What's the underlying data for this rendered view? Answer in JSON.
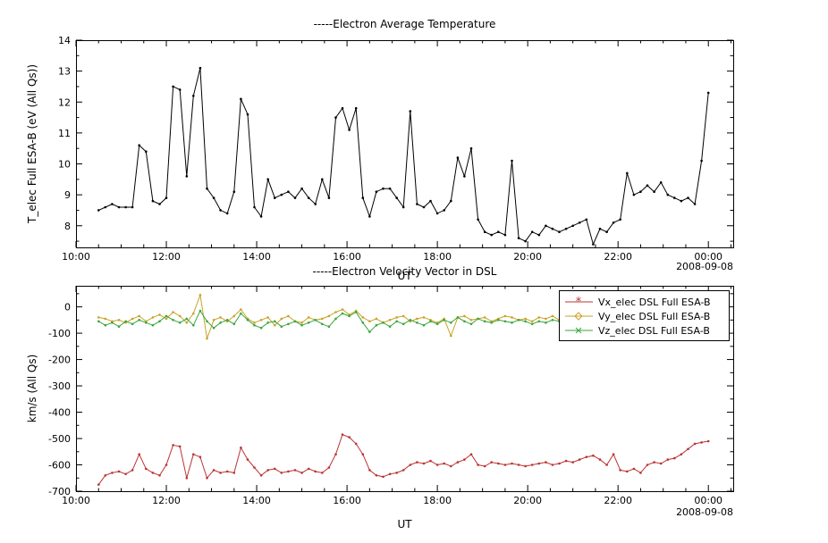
{
  "page": {
    "background": "#ffffff"
  },
  "chart_data": [
    {
      "type": "line",
      "title": "-----Electron Average Temperature",
      "xlabel": "UT",
      "ylabel": "T_elec Full ESA-B (eV (All Qs))",
      "date_label": "2008-09-08",
      "xlim": [
        10,
        24.55
      ],
      "ylim": [
        7.3,
        14
      ],
      "x_ticks": [
        10,
        12,
        14,
        16,
        18,
        20,
        22,
        24
      ],
      "x_tick_labels": [
        "10:00",
        "12:00",
        "14:00",
        "16:00",
        "18:00",
        "20:00",
        "22:00",
        "00:00"
      ],
      "x_minor": 0.5,
      "y_ticks": [
        8,
        9,
        10,
        11,
        12,
        13,
        14
      ],
      "y_tick_labels": [
        "8",
        "9",
        "10",
        "11",
        "12",
        "13",
        "14"
      ],
      "y_minor": 0.5,
      "x": [
        10.5,
        10.65,
        10.8,
        10.95,
        11.1,
        11.25,
        11.4,
        11.55,
        11.7,
        11.85,
        12.0,
        12.15,
        12.3,
        12.45,
        12.6,
        12.75,
        12.9,
        13.05,
        13.2,
        13.35,
        13.5,
        13.65,
        13.8,
        13.95,
        14.1,
        14.25,
        14.4,
        14.55,
        14.7,
        14.85,
        15.0,
        15.15,
        15.3,
        15.45,
        15.6,
        15.75,
        15.9,
        16.05,
        16.2,
        16.35,
        16.5,
        16.65,
        16.8,
        16.95,
        17.1,
        17.25,
        17.4,
        17.55,
        17.7,
        17.85,
        18.0,
        18.15,
        18.3,
        18.45,
        18.6,
        18.75,
        18.9,
        19.05,
        19.2,
        19.35,
        19.5,
        19.65,
        19.8,
        19.95,
        20.1,
        20.25,
        20.4,
        20.55,
        20.7,
        20.85,
        21.0,
        21.15,
        21.3,
        21.45,
        21.6,
        21.75,
        21.9,
        22.05,
        22.2,
        22.35,
        22.5,
        22.65,
        22.8,
        22.95,
        23.1,
        23.25,
        23.4,
        23.55,
        23.7,
        23.85,
        24.0
      ],
      "series": [
        {
          "name": "T_elec Full ESA-B",
          "color": "#000000",
          "marker": "dot",
          "values": [
            8.5,
            8.6,
            8.7,
            8.6,
            8.6,
            8.6,
            10.6,
            10.4,
            8.8,
            8.7,
            8.9,
            12.5,
            12.4,
            9.6,
            12.2,
            13.1,
            9.2,
            8.9,
            8.5,
            8.4,
            9.1,
            12.1,
            11.6,
            8.6,
            8.3,
            9.5,
            8.9,
            9.0,
            9.1,
            8.9,
            9.2,
            8.9,
            8.7,
            9.5,
            8.9,
            11.5,
            11.8,
            11.1,
            11.8,
            8.9,
            8.3,
            9.1,
            9.2,
            9.2,
            8.9,
            8.6,
            11.7,
            8.7,
            8.6,
            8.8,
            8.4,
            8.5,
            8.8,
            10.2,
            9.6,
            10.5,
            8.2,
            7.8,
            7.7,
            7.8,
            7.7,
            10.1,
            7.6,
            7.5,
            7.8,
            7.7,
            8.0,
            7.9,
            7.8,
            7.9,
            8.0,
            8.1,
            8.2,
            7.4,
            7.9,
            7.8,
            8.1,
            8.2,
            9.7,
            9.0,
            9.1,
            9.3,
            9.1,
            9.4,
            9.0,
            8.9,
            8.8,
            8.9,
            8.7,
            10.1,
            12.3
          ]
        }
      ]
    },
    {
      "type": "line",
      "title": "-----Electron Velocity Vector in DSL",
      "xlabel": "UT",
      "ylabel": "km/s (All Qs)",
      "date_label": "2008-09-08",
      "xlim": [
        10,
        24.55
      ],
      "ylim": [
        -700,
        80
      ],
      "x_ticks": [
        10,
        12,
        14,
        16,
        18,
        20,
        22,
        24
      ],
      "x_tick_labels": [
        "10:00",
        "12:00",
        "14:00",
        "16:00",
        "18:00",
        "20:00",
        "22:00",
        "00:00"
      ],
      "x_minor": 0.5,
      "y_ticks": [
        0,
        -100,
        -200,
        -300,
        -400,
        -500,
        -600,
        -700
      ],
      "y_tick_labels": [
        "0",
        "-100",
        "-200",
        "-300",
        "-400",
        "-500",
        "-600",
        "-700"
      ],
      "y_minor": 50,
      "legend_position": "top-right",
      "x": [
        10.5,
        10.65,
        10.8,
        10.95,
        11.1,
        11.25,
        11.4,
        11.55,
        11.7,
        11.85,
        12.0,
        12.15,
        12.3,
        12.45,
        12.6,
        12.75,
        12.9,
        13.05,
        13.2,
        13.35,
        13.5,
        13.65,
        13.8,
        13.95,
        14.1,
        14.25,
        14.4,
        14.55,
        14.7,
        14.85,
        15.0,
        15.15,
        15.3,
        15.45,
        15.6,
        15.75,
        15.9,
        16.05,
        16.2,
        16.35,
        16.5,
        16.65,
        16.8,
        16.95,
        17.1,
        17.25,
        17.4,
        17.55,
        17.7,
        17.85,
        18.0,
        18.15,
        18.3,
        18.45,
        18.6,
        18.75,
        18.9,
        19.05,
        19.2,
        19.35,
        19.5,
        19.65,
        19.8,
        19.95,
        20.1,
        20.25,
        20.4,
        20.55,
        20.7,
        20.85,
        21.0,
        21.15,
        21.3,
        21.45,
        21.6,
        21.75,
        21.9,
        22.05,
        22.2,
        22.35,
        22.5,
        22.65,
        22.8,
        22.95,
        23.1,
        23.25,
        23.4,
        23.55,
        23.7,
        23.85,
        24.0
      ],
      "series": [
        {
          "name": "Vx_elec DSL Full ESA-B",
          "color": "#bb3333",
          "marker": "asterisk",
          "values": [
            -675,
            -640,
            -630,
            -625,
            -635,
            -620,
            -560,
            -615,
            -630,
            -640,
            -600,
            -525,
            -530,
            -650,
            -560,
            -570,
            -650,
            -620,
            -630,
            -625,
            -630,
            -535,
            -580,
            -610,
            -640,
            -620,
            -615,
            -630,
            -625,
            -620,
            -630,
            -615,
            -625,
            -630,
            -610,
            -560,
            -485,
            -495,
            -520,
            -560,
            -620,
            -640,
            -645,
            -635,
            -630,
            -620,
            -600,
            -590,
            -595,
            -585,
            -600,
            -595,
            -605,
            -590,
            -580,
            -560,
            -600,
            -605,
            -590,
            -595,
            -600,
            -595,
            -600,
            -605,
            -600,
            -595,
            -590,
            -600,
            -595,
            -585,
            -590,
            -580,
            -570,
            -565,
            -580,
            -600,
            -560,
            -620,
            -625,
            -615,
            -630,
            -600,
            -590,
            -595,
            -580,
            -575,
            -560,
            -540,
            -520,
            -515,
            -510
          ]
        },
        {
          "name": "Vy_elec DSL Full ESA-B",
          "color": "#c9a227",
          "marker": "diamond",
          "values": [
            -40,
            -45,
            -55,
            -50,
            -60,
            -45,
            -35,
            -55,
            -40,
            -30,
            -45,
            -20,
            -35,
            -60,
            -25,
            45,
            -120,
            -50,
            -40,
            -55,
            -35,
            -10,
            -45,
            -60,
            -50,
            -40,
            -70,
            -45,
            -35,
            -55,
            -60,
            -40,
            -50,
            -45,
            -35,
            -20,
            -10,
            -30,
            -15,
            -40,
            -55,
            -45,
            -60,
            -50,
            -40,
            -35,
            -55,
            -45,
            -40,
            -50,
            -60,
            -45,
            -110,
            -40,
            -35,
            -50,
            -45,
            -40,
            -55,
            -45,
            -35,
            -40,
            -50,
            -45,
            -55,
            -40,
            -45,
            -35,
            -50,
            -40,
            -55,
            -45,
            -40,
            -35,
            -45,
            -50,
            -40,
            -30,
            -45,
            -55,
            -40,
            -35,
            -25,
            -40,
            -30,
            -35,
            -25,
            -30,
            -20,
            -25,
            -15
          ]
        },
        {
          "name": "Vz_elec DSL Full ESA-B",
          "color": "#3aa63a",
          "marker": "cross",
          "values": [
            -55,
            -70,
            -60,
            -75,
            -55,
            -65,
            -50,
            -60,
            -70,
            -55,
            -35,
            -50,
            -60,
            -45,
            -70,
            -15,
            -55,
            -80,
            -60,
            -50,
            -65,
            -25,
            -50,
            -70,
            -80,
            -60,
            -55,
            -75,
            -65,
            -55,
            -70,
            -60,
            -50,
            -65,
            -75,
            -45,
            -25,
            -35,
            -20,
            -60,
            -95,
            -70,
            -60,
            -75,
            -55,
            -65,
            -50,
            -60,
            -70,
            -55,
            -65,
            -50,
            -60,
            -40,
            -55,
            -65,
            -45,
            -55,
            -60,
            -50,
            -55,
            -60,
            -50,
            -55,
            -65,
            -55,
            -60,
            -50,
            -55,
            -60,
            -50,
            -55,
            -45,
            -55,
            -60,
            -50,
            -55,
            -45,
            -55,
            -65,
            -50,
            -55,
            -60,
            -50,
            -45,
            -55,
            -50,
            -45,
            -50,
            -45,
            -40
          ]
        }
      ]
    }
  ]
}
